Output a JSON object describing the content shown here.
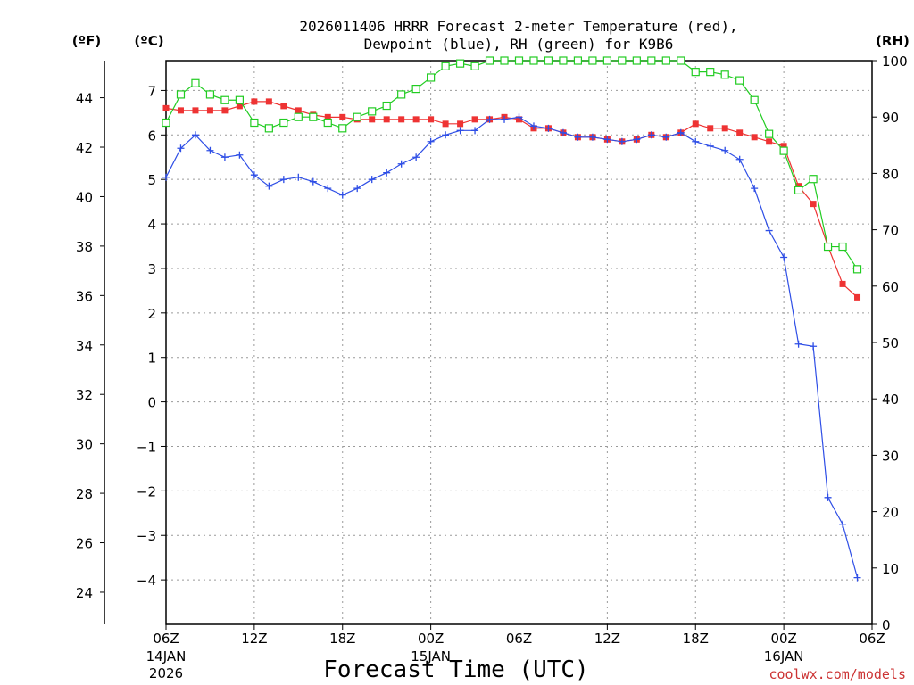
{
  "chart_data": {
    "type": "line",
    "title_line1": "2026011406 HRRR Forecast 2-meter Temperature (red),",
    "title_line2": "Dewpoint (blue), RH (green) for K9B6",
    "xlabel": "Forecast Time (UTC)",
    "credit": "coolwx.com/models",
    "axis_units": {
      "f": "(ºF)",
      "c": "(ºC)",
      "rh": "(RH)"
    },
    "x_range_hours": [
      0,
      48
    ],
    "x_ticks": [
      {
        "hour": 0,
        "label": "06Z",
        "date": "14JAN",
        "year": "2026"
      },
      {
        "hour": 6,
        "label": "12Z"
      },
      {
        "hour": 12,
        "label": "18Z"
      },
      {
        "hour": 18,
        "label": "00Z",
        "date": "15JAN"
      },
      {
        "hour": 24,
        "label": "06Z"
      },
      {
        "hour": 30,
        "label": "12Z"
      },
      {
        "hour": 36,
        "label": "18Z"
      },
      {
        "hour": 42,
        "label": "00Z",
        "date": "16JAN"
      },
      {
        "hour": 48,
        "label": "06Z"
      }
    ],
    "left_axis_f": {
      "min": 22.7,
      "max": 45.5,
      "ticks": [
        "24",
        "26",
        "28",
        "30",
        "32",
        "34",
        "36",
        "38",
        "40",
        "42",
        "44"
      ]
    },
    "left_axis_c": {
      "min": -5,
      "max": 7.67,
      "ticks": [
        "-4",
        "-3",
        "-2",
        "-1",
        "0",
        "1",
        "2",
        "3",
        "4",
        "5",
        "6",
        "7"
      ]
    },
    "right_axis_rh": {
      "min": 0,
      "max": 100,
      "ticks": [
        "0",
        "10",
        "20",
        "30",
        "40",
        "50",
        "60",
        "70",
        "80",
        "90",
        "100"
      ]
    },
    "series": [
      {
        "name": "Temperature",
        "unit": "C",
        "color": "#ee3333",
        "marker": "filled-square",
        "values": [
          6.6,
          6.55,
          6.55,
          6.55,
          6.55,
          6.65,
          6.75,
          6.75,
          6.65,
          6.55,
          6.45,
          6.4,
          6.4,
          6.35,
          6.35,
          6.35,
          6.35,
          6.35,
          6.35,
          6.25,
          6.25,
          6.35,
          6.35,
          6.4,
          6.35,
          6.15,
          6.15,
          6.05,
          5.95,
          5.95,
          5.9,
          5.85,
          5.9,
          6.0,
          5.95,
          6.05,
          6.25,
          6.15,
          6.15,
          6.05,
          5.95,
          5.85,
          5.75,
          4.85,
          4.45,
          3.5,
          2.65,
          2.35
        ]
      },
      {
        "name": "Dewpoint",
        "unit": "C",
        "color": "#2e4ee6",
        "marker": "plus",
        "values": [
          5.05,
          5.7,
          6.0,
          5.65,
          5.5,
          5.55,
          5.1,
          4.85,
          5.0,
          5.05,
          4.95,
          4.8,
          4.65,
          4.8,
          5.0,
          5.15,
          5.35,
          5.5,
          5.85,
          6.0,
          6.1,
          6.1,
          6.35,
          6.35,
          6.4,
          6.2,
          6.15,
          6.05,
          5.95,
          5.95,
          5.9,
          5.85,
          5.9,
          6.0,
          5.95,
          6.05,
          5.85,
          5.75,
          5.65,
          5.45,
          4.8,
          3.85,
          3.25,
          1.3,
          1.25,
          -2.15,
          -2.75,
          -3.95
        ]
      },
      {
        "name": "RH",
        "unit": "%",
        "color": "#22cc22",
        "marker": "open-square",
        "values": [
          89,
          94,
          96,
          94,
          93,
          93,
          89,
          88,
          89,
          90,
          90,
          89,
          88,
          90,
          91,
          92,
          94,
          95,
          97,
          99,
          99.5,
          99,
          100,
          100,
          100,
          100,
          100,
          100,
          100,
          100,
          100,
          100,
          100,
          100,
          100,
          100,
          98,
          98,
          97.5,
          96.5,
          93,
          87,
          84,
          77,
          79,
          67,
          67,
          63
        ]
      }
    ]
  }
}
